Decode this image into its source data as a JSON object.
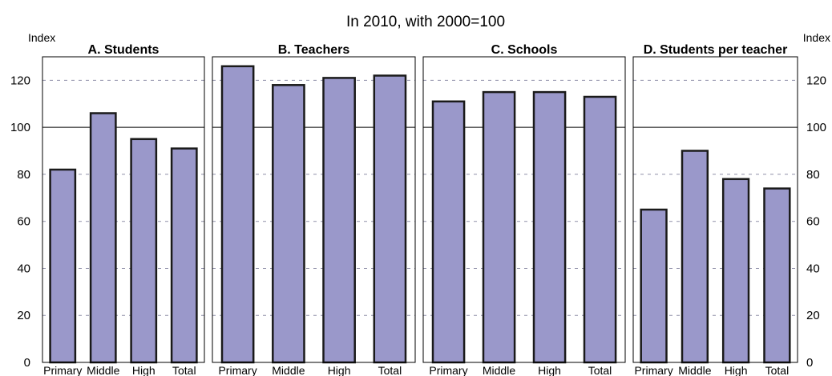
{
  "chart_data": {
    "type": "bar",
    "title": "In 2010, with 2000=100",
    "ylabel_left": "Index",
    "ylabel_right": "Index",
    "ylim": [
      0,
      130
    ],
    "yticks": [
      0,
      20,
      40,
      60,
      80,
      100,
      120
    ],
    "reference_line": 100,
    "grid": "dashed horizontal at 20, 40, 60, 80, 120",
    "bar_color": "#9a98ca",
    "bar_outline_color": "#1a1a1a",
    "panels": [
      {
        "title": "A. Students",
        "categories": [
          "Primary",
          "Middle",
          "High",
          "Total"
        ],
        "values": [
          82,
          106,
          95,
          91
        ]
      },
      {
        "title": "B. Teachers",
        "categories": [
          "Primary",
          "Middle",
          "High",
          "Total"
        ],
        "values": [
          126,
          118,
          121,
          122
        ]
      },
      {
        "title": "C. Schools",
        "categories": [
          "Primary",
          "Middle",
          "High",
          "Total"
        ],
        "values": [
          111,
          115,
          115,
          113
        ]
      },
      {
        "title": "D. Students per teacher",
        "categories": [
          "Primary",
          "Middle",
          "High",
          "Total"
        ],
        "values": [
          65,
          90,
          78,
          74
        ]
      }
    ]
  }
}
